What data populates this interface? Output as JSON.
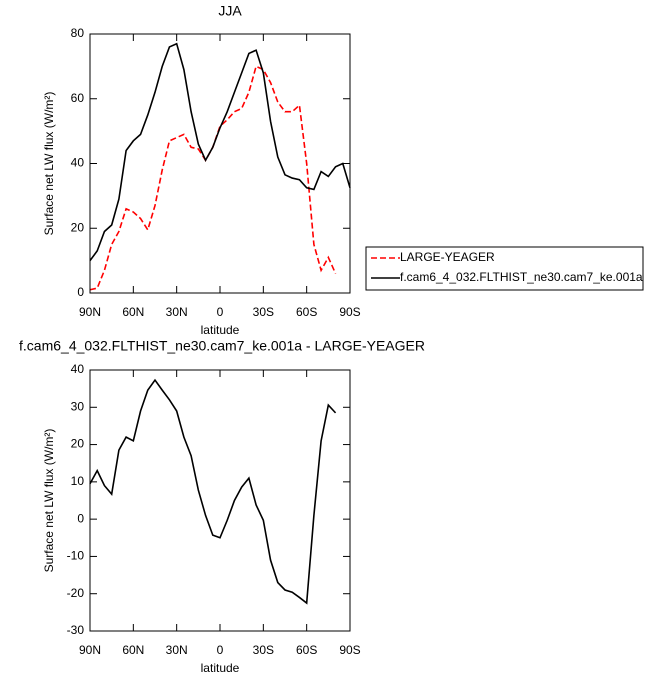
{
  "chart_data": [
    {
      "type": "line",
      "title": "JJA",
      "x_label": "latitude",
      "y_label": "Surface net LW flux (W/m²)",
      "x": [
        90,
        85,
        80,
        75,
        70,
        65,
        60,
        55,
        50,
        45,
        40,
        35,
        30,
        25,
        20,
        15,
        10,
        5,
        0,
        -5,
        -10,
        -15,
        -20,
        -25,
        -30,
        -35,
        -40,
        -45,
        -50,
        -55,
        -60,
        -65,
        -70,
        -75,
        -80,
        -85,
        -90
      ],
      "xlim": [
        90,
        -90
      ],
      "xticks": [
        {
          "value": 90,
          "label": "90N"
        },
        {
          "value": 60,
          "label": "60N"
        },
        {
          "value": 30,
          "label": "30N"
        },
        0,
        {
          "value": -30,
          "label": "30S"
        },
        {
          "value": -60,
          "label": "60S"
        },
        {
          "value": -90,
          "label": "90S"
        }
      ],
      "ylim": [
        0,
        80
      ],
      "yticks": [
        0,
        20,
        40,
        60,
        80
      ],
      "legend": "right",
      "series": [
        {
          "name": "LARGE-YEAGER",
          "color": "#ff0000",
          "line_style": "dashed",
          "values": [
            1,
            1.5,
            7,
            15,
            19,
            26,
            25,
            23,
            19.5,
            27,
            38,
            47,
            48,
            49,
            45,
            44.5,
            41,
            45,
            51.5,
            53.5,
            56,
            57,
            62,
            70,
            69,
            65,
            59,
            56,
            56,
            58,
            40,
            15,
            7,
            11,
            6,
            null,
            null
          ]
        },
        {
          "name": "f.cam6_4_032.FLTHIST_ne30.cam7_ke.001a",
          "color": "#000000",
          "line_style": "solid",
          "values": [
            10,
            13,
            19,
            21,
            29,
            44,
            47,
            49,
            55,
            62,
            70,
            76,
            77,
            69,
            56,
            46,
            41,
            45,
            51,
            56,
            62,
            68,
            74,
            75,
            68,
            53,
            42,
            36.5,
            35.5,
            35,
            32.5,
            32,
            37.5,
            36,
            39,
            40,
            32.5
          ]
        }
      ]
    },
    {
      "type": "line",
      "title": "f.cam6_4_032.FLTHIST_ne30.cam7_ke.001a - LARGE-YEAGER",
      "x_label": "latitude",
      "y_label": "Surface net LW flux (W/m²)",
      "x": [
        90,
        85,
        80,
        75,
        70,
        65,
        60,
        55,
        50,
        45,
        40,
        35,
        30,
        25,
        20,
        15,
        10,
        5,
        0,
        -5,
        -10,
        -15,
        -20,
        -25,
        -30,
        -35,
        -40,
        -45,
        -50,
        -55,
        -60,
        -65,
        -70,
        -75,
        -80,
        -85,
        -90
      ],
      "xlim": [
        90,
        -90
      ],
      "xticks": [
        {
          "value": 90,
          "label": "90N"
        },
        {
          "value": 60,
          "label": "60N"
        },
        {
          "value": 30,
          "label": "30N"
        },
        0,
        {
          "value": -30,
          "label": "30S"
        },
        {
          "value": -60,
          "label": "60S"
        },
        {
          "value": -90,
          "label": "90S"
        }
      ],
      "ylim": [
        -30,
        40
      ],
      "yticks": [
        -30,
        -20,
        -10,
        0,
        10,
        20,
        30,
        40
      ],
      "series": [
        {
          "color": "#000000",
          "line_style": "solid",
          "values": [
            9.5,
            13,
            9,
            6.7,
            18.5,
            22,
            21,
            29,
            34.6,
            37.3,
            34.6,
            32,
            29,
            22,
            17,
            7.8,
            1,
            -4.3,
            -5,
            -0.3,
            5,
            8.6,
            11,
            3.8,
            -0.3,
            -11,
            -17,
            -19,
            -19.6,
            -21,
            -22.5,
            1,
            21,
            30.6,
            28.5,
            null,
            null
          ]
        }
      ]
    }
  ]
}
